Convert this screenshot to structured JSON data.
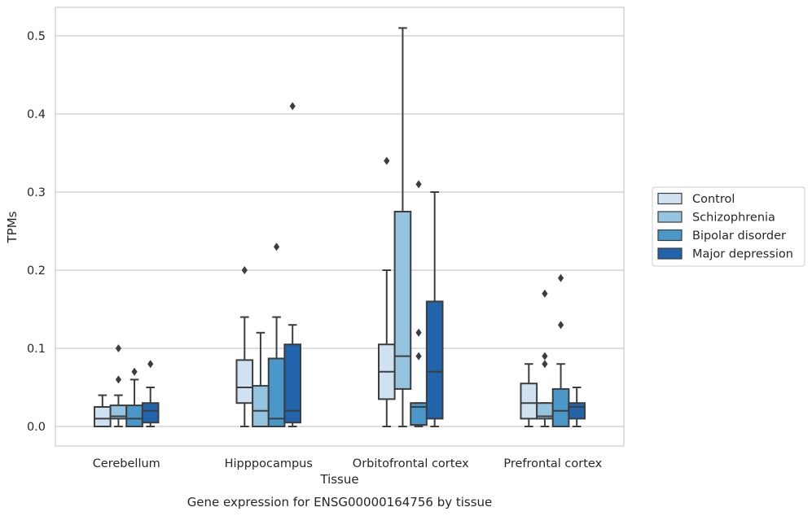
{
  "chart_data": {
    "type": "box",
    "title": "Gene expression for ENSG00000164756 by tissue",
    "xlabel": "Tissue",
    "ylabel": "TPMs",
    "ylim": [
      -0.025,
      0.53
    ],
    "yticks": [
      0.0,
      0.1,
      0.2,
      0.3,
      0.4,
      0.5
    ],
    "ytick_labels": [
      "0.0",
      "0.1",
      "0.2",
      "0.3",
      "0.4",
      "0.5"
    ],
    "grid": "horizontal",
    "legend_position": "right",
    "categories": [
      "Cerebellum",
      "Hipppocampus",
      "Orbitofrontal cortex",
      "Prefrontal cortex"
    ],
    "series": [
      {
        "name": "Control",
        "color": "#d0e1f2",
        "boxes": [
          {
            "whislo": 0.0,
            "q1": 0.0,
            "med": 0.01,
            "q3": 0.025,
            "whishi": 0.04,
            "fliers": []
          },
          {
            "whislo": 0.0,
            "q1": 0.03,
            "med": 0.05,
            "q3": 0.085,
            "whishi": 0.14,
            "fliers": [
              0.2
            ]
          },
          {
            "whislo": 0.0,
            "q1": 0.035,
            "med": 0.07,
            "q3": 0.105,
            "whishi": 0.2,
            "fliers": [
              0.34
            ]
          },
          {
            "whislo": 0.0,
            "q1": 0.01,
            "med": 0.03,
            "q3": 0.055,
            "whishi": 0.08,
            "fliers": []
          }
        ]
      },
      {
        "name": "Schizophrenia",
        "color": "#94c4df",
        "boxes": [
          {
            "whislo": 0.0,
            "q1": 0.01,
            "med": 0.013,
            "q3": 0.027,
            "whishi": 0.04,
            "fliers": [
              0.06,
              0.1
            ]
          },
          {
            "whislo": 0.0,
            "q1": 0.0,
            "med": 0.02,
            "q3": 0.052,
            "whishi": 0.12,
            "fliers": []
          },
          {
            "whislo": 0.0,
            "q1": 0.048,
            "med": 0.09,
            "q3": 0.275,
            "whishi": 0.51,
            "fliers": []
          },
          {
            "whislo": 0.0,
            "q1": 0.01,
            "med": 0.013,
            "q3": 0.03,
            "whishi": 0.03,
            "fliers": [
              0.08,
              0.09,
              0.17
            ]
          }
        ]
      },
      {
        "name": "Bipolar disorder",
        "color": "#4a98c9",
        "boxes": [
          {
            "whislo": 0.0,
            "q1": 0.0,
            "med": 0.01,
            "q3": 0.027,
            "whishi": 0.06,
            "fliers": [
              0.07
            ]
          },
          {
            "whislo": 0.0,
            "q1": 0.0,
            "med": 0.01,
            "q3": 0.087,
            "whishi": 0.14,
            "fliers": [
              0.23
            ]
          },
          {
            "whislo": 0.0,
            "q1": 0.002,
            "med": 0.025,
            "q3": 0.03,
            "whishi": 0.03,
            "fliers": [
              0.09,
              0.12,
              0.31
            ]
          },
          {
            "whislo": 0.0,
            "q1": 0.0,
            "med": 0.02,
            "q3": 0.048,
            "whishi": 0.08,
            "fliers": [
              0.13,
              0.19
            ]
          }
        ]
      },
      {
        "name": "Major depression",
        "color": "#2164ab",
        "boxes": [
          {
            "whislo": 0.0,
            "q1": 0.005,
            "med": 0.02,
            "q3": 0.03,
            "whishi": 0.05,
            "fliers": [
              0.08
            ]
          },
          {
            "whislo": 0.0,
            "q1": 0.005,
            "med": 0.02,
            "q3": 0.105,
            "whishi": 0.13,
            "fliers": [
              0.41
            ]
          },
          {
            "whislo": 0.0,
            "q1": 0.01,
            "med": 0.07,
            "q3": 0.16,
            "whishi": 0.3,
            "fliers": []
          },
          {
            "whislo": 0.0,
            "q1": 0.01,
            "med": 0.025,
            "q3": 0.03,
            "whishi": 0.05,
            "fliers": []
          }
        ]
      }
    ]
  }
}
